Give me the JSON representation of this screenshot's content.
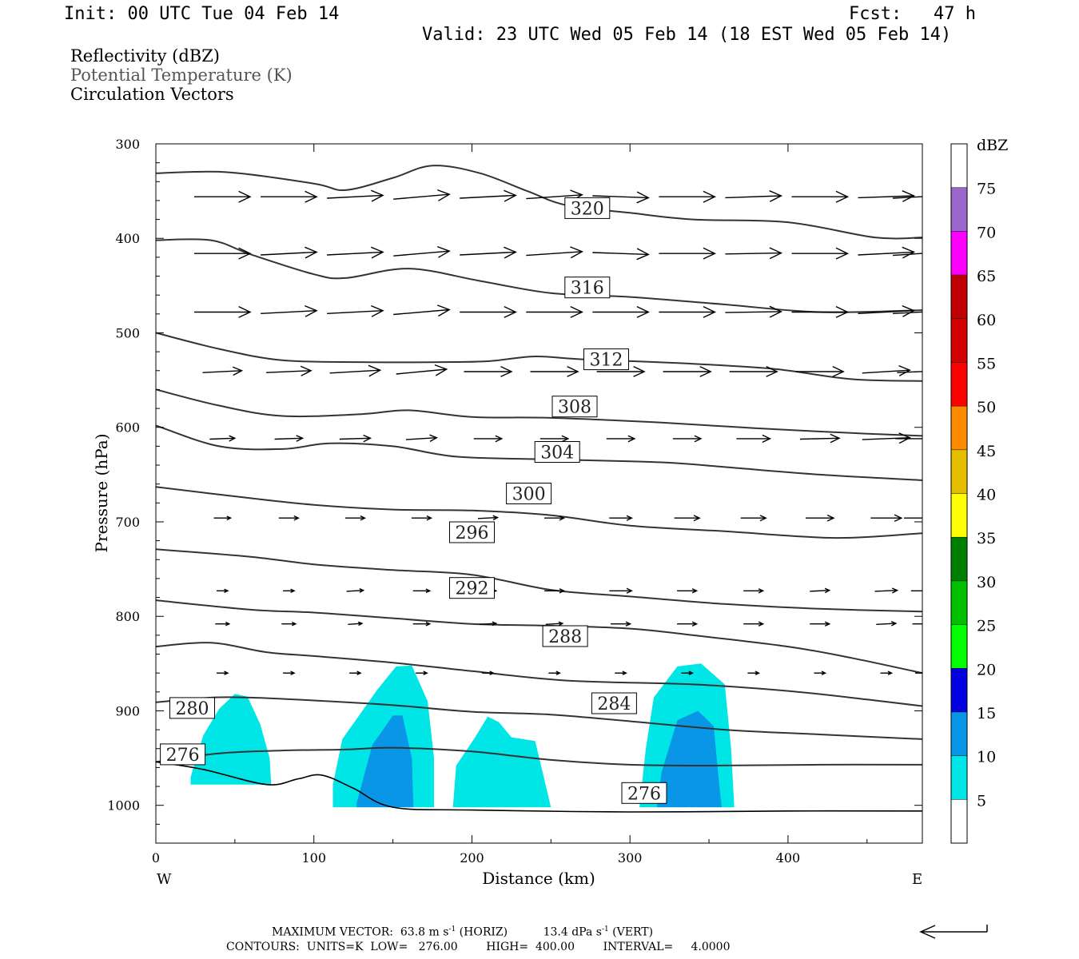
{
  "header": {
    "init": "Init: 00 UTC Tue 04 Feb 14",
    "fcst": "Fcst:   47 h",
    "valid": "Valid: 23 UTC Wed 05 Feb 14 (18 EST Wed 05 Feb 14)"
  },
  "fields": {
    "reflectivity": "Reflectivity (dBZ)",
    "theta": "Potential Temperature (K)",
    "vectors": "Circulation Vectors"
  },
  "chart_data": {
    "type": "cross-section",
    "xlabel": "Distance (km)",
    "ylabel": "Pressure (hPa)",
    "xlim": [
      0,
      485
    ],
    "ylim": [
      300,
      1040
    ],
    "x_ticks": [
      "0",
      "100",
      "200",
      "300",
      "400"
    ],
    "y_ticks": [
      "300",
      "400",
      "500",
      "600",
      "700",
      "800",
      "900",
      "1000"
    ],
    "x_end_labels": {
      "left": "W",
      "right": "E"
    },
    "colorbar": {
      "unit": "dBZ",
      "levels": [
        "5",
        "10",
        "15",
        "20",
        "25",
        "30",
        "35",
        "40",
        "45",
        "50",
        "55",
        "60",
        "65",
        "70",
        "75"
      ],
      "colors": [
        "#ffffff",
        "#00e6e6",
        "#0a96e6",
        "#0000e0",
        "#00ff00",
        "#00c000",
        "#008000",
        "#ffff00",
        "#e6be00",
        "#ff8c00",
        "#ff0000",
        "#d40000",
        "#c00000",
        "#ff00ff",
        "#9966cc",
        "#ffffff"
      ]
    },
    "contour_labels": [
      {
        "label": "320",
        "x": 273,
        "p": 368
      },
      {
        "label": "316",
        "x": 273,
        "p": 452
      },
      {
        "label": "312",
        "x": 285,
        "p": 528
      },
      {
        "label": "308",
        "x": 265,
        "p": 578
      },
      {
        "label": "304",
        "x": 254,
        "p": 626
      },
      {
        "label": "300",
        "x": 236,
        "p": 670
      },
      {
        "label": "296",
        "x": 200,
        "p": 711
      },
      {
        "label": "292",
        "x": 200,
        "p": 770
      },
      {
        "label": "288",
        "x": 259,
        "p": 821
      },
      {
        "label": "284",
        "x": 290,
        "p": 892
      },
      {
        "label": "280",
        "x": 23,
        "p": 897
      },
      {
        "label": "276",
        "x": 17,
        "p": 946
      },
      {
        "label": "276",
        "x": 309,
        "p": 987
      }
    ],
    "theta_contours": [
      {
        "level": 320,
        "points": [
          [
            0,
            331
          ],
          [
            45,
            330
          ],
          [
            100,
            342
          ],
          [
            120,
            349
          ],
          [
            150,
            336
          ],
          [
            175,
            323
          ],
          [
            205,
            331
          ],
          [
            235,
            350
          ],
          [
            260,
            365
          ],
          [
            300,
            373
          ],
          [
            340,
            380
          ],
          [
            400,
            383
          ],
          [
            455,
            399
          ],
          [
            485,
            399
          ]
        ]
      },
      {
        "level": 316,
        "points": [
          [
            0,
            402
          ],
          [
            35,
            402
          ],
          [
            60,
            417
          ],
          [
            100,
            438
          ],
          [
            120,
            442
          ],
          [
            160,
            432
          ],
          [
            205,
            445
          ],
          [
            250,
            458
          ],
          [
            300,
            462
          ],
          [
            360,
            470
          ],
          [
            420,
            478
          ],
          [
            485,
            476
          ]
        ]
      },
      {
        "level": 312,
        "points": [
          [
            0,
            500
          ],
          [
            40,
            517
          ],
          [
            80,
            529
          ],
          [
            130,
            531
          ],
          [
            180,
            531
          ],
          [
            210,
            530
          ],
          [
            240,
            525
          ],
          [
            270,
            528
          ],
          [
            330,
            532
          ],
          [
            390,
            538
          ],
          [
            440,
            549
          ],
          [
            485,
            551
          ]
        ]
      },
      {
        "level": 308,
        "points": [
          [
            0,
            560
          ],
          [
            40,
            577
          ],
          [
            80,
            588
          ],
          [
            130,
            586
          ],
          [
            160,
            582
          ],
          [
            200,
            589
          ],
          [
            250,
            590
          ],
          [
            320,
            595
          ],
          [
            380,
            601
          ],
          [
            440,
            606
          ],
          [
            485,
            609
          ]
        ]
      },
      {
        "level": 304,
        "points": [
          [
            0,
            598
          ],
          [
            40,
            620
          ],
          [
            80,
            623
          ],
          [
            110,
            617
          ],
          [
            150,
            620
          ],
          [
            190,
            631
          ],
          [
            250,
            634
          ],
          [
            320,
            637
          ],
          [
            360,
            642
          ],
          [
            420,
            650
          ],
          [
            485,
            656
          ]
        ]
      },
      {
        "level": 300,
        "points": [
          [
            0,
            663
          ],
          [
            60,
            675
          ],
          [
            100,
            682
          ],
          [
            150,
            687
          ],
          [
            200,
            688
          ],
          [
            250,
            693
          ],
          [
            300,
            704
          ],
          [
            360,
            710
          ],
          [
            430,
            717
          ],
          [
            485,
            712
          ]
        ]
      },
      {
        "level": 296,
        "points": [
          [
            0,
            729
          ],
          [
            60,
            737
          ],
          [
            100,
            745
          ],
          [
            150,
            751
          ],
          [
            200,
            756
          ],
          [
            250,
            772
          ],
          [
            300,
            779
          ],
          [
            360,
            787
          ],
          [
            420,
            792
          ],
          [
            485,
            795
          ]
        ]
      },
      {
        "level": 292,
        "points": [
          [
            0,
            783
          ],
          [
            60,
            793
          ],
          [
            100,
            796
          ],
          [
            150,
            802
          ],
          [
            200,
            808
          ],
          [
            250,
            810
          ],
          [
            300,
            813
          ],
          [
            340,
            820
          ],
          [
            400,
            832
          ],
          [
            440,
            844
          ],
          [
            485,
            860
          ]
        ]
      },
      {
        "level": 288,
        "points": [
          [
            0,
            832
          ],
          [
            35,
            828
          ],
          [
            70,
            838
          ],
          [
            100,
            842
          ],
          [
            150,
            849
          ],
          [
            200,
            858
          ],
          [
            260,
            868
          ],
          [
            340,
            872
          ],
          [
            400,
            879
          ],
          [
            450,
            888
          ],
          [
            485,
            895
          ]
        ]
      },
      {
        "level": 284,
        "points": [
          [
            0,
            891
          ],
          [
            35,
            886
          ],
          [
            60,
            886
          ],
          [
            100,
            889
          ],
          [
            150,
            894
          ],
          [
            200,
            901
          ],
          [
            250,
            904
          ],
          [
            300,
            911
          ],
          [
            360,
            920
          ],
          [
            420,
            925
          ],
          [
            485,
            930
          ]
        ]
      },
      {
        "level": 280,
        "points": [
          [
            0,
            954
          ],
          [
            40,
            945
          ],
          [
            80,
            942
          ],
          [
            120,
            941
          ],
          [
            150,
            939
          ],
          [
            200,
            943
          ],
          [
            250,
            952
          ],
          [
            300,
            957
          ],
          [
            350,
            958
          ],
          [
            420,
            957
          ],
          [
            485,
            957
          ]
        ]
      }
    ],
    "reflectivity_cells": [
      {
        "dbz": 5,
        "points": [
          [
            22,
            970
          ],
          [
            30,
            926
          ],
          [
            40,
            898
          ],
          [
            50,
            882
          ],
          [
            58,
            885
          ],
          [
            66,
            914
          ],
          [
            72,
            950
          ],
          [
            73,
            978
          ],
          [
            22,
            978
          ]
        ]
      },
      {
        "dbz": 5,
        "points": [
          [
            112,
            978
          ],
          [
            118,
            930
          ],
          [
            140,
            878
          ],
          [
            152,
            853
          ],
          [
            162,
            852
          ],
          [
            172,
            890
          ],
          [
            176,
            950
          ],
          [
            176,
            1002
          ],
          [
            112,
            1002
          ]
        ]
      },
      {
        "dbz": 10,
        "points": [
          [
            127,
            998
          ],
          [
            137,
            936
          ],
          [
            150,
            905
          ],
          [
            156,
            905
          ],
          [
            162,
            950
          ],
          [
            163,
            1002
          ],
          [
            127,
            1002
          ]
        ]
      },
      {
        "dbz": 5,
        "points": [
          [
            188,
            1002
          ],
          [
            190,
            958
          ],
          [
            202,
            928
          ],
          [
            210,
            906
          ],
          [
            217,
            912
          ],
          [
            225,
            928
          ],
          [
            240,
            932
          ],
          [
            250,
            1002
          ]
        ]
      },
      {
        "dbz": 5,
        "points": [
          [
            306,
            1002
          ],
          [
            310,
            940
          ],
          [
            315,
            886
          ],
          [
            330,
            853
          ],
          [
            345,
            850
          ],
          [
            360,
            872
          ],
          [
            364,
            940
          ],
          [
            366,
            1002
          ]
        ]
      },
      {
        "dbz": 10,
        "points": [
          [
            317,
            1002
          ],
          [
            320,
            965
          ],
          [
            330,
            910
          ],
          [
            343,
            900
          ],
          [
            353,
            916
          ],
          [
            356,
            970
          ],
          [
            358,
            1002
          ]
        ]
      }
    ],
    "surface": {
      "points": [
        [
          0,
          954
        ],
        [
          30,
          962
        ],
        [
          70,
          978
        ],
        [
          90,
          972
        ],
        [
          105,
          968
        ],
        [
          125,
          982
        ],
        [
          150,
          1002
        ],
        [
          200,
          1005
        ],
        [
          300,
          1007
        ],
        [
          400,
          1006
        ],
        [
          485,
          1006
        ]
      ]
    },
    "vector_rows": [
      {
        "p": 356,
        "u": [
          1.0,
          1.0,
          1.0,
          1.0,
          1.0,
          1.0,
          1.0,
          1.0,
          1.0,
          1.0,
          1.0,
          1.0
        ],
        "w": [
          0,
          0,
          -3,
          -5,
          -3,
          -4,
          2,
          0,
          -2,
          0,
          -2,
          -3
        ]
      },
      {
        "p": 416,
        "u": [
          1.0,
          1.0,
          1.0,
          1.0,
          1.0,
          1.0,
          1.0,
          1.0,
          1.0,
          1.0,
          1.0,
          1.0
        ],
        "w": [
          0,
          -3,
          -3,
          -5,
          -3,
          -4,
          2,
          0,
          -1,
          0,
          -3,
          -4
        ]
      },
      {
        "p": 478,
        "u": [
          1.0,
          1.0,
          1.0,
          1.0,
          1.0,
          1.0,
          1.0,
          1.0,
          1.0,
          1.0,
          1.0,
          1.0
        ],
        "w": [
          0,
          -3,
          -3,
          -5,
          0,
          0,
          0,
          0,
          -1,
          0,
          -3,
          -3
        ]
      },
      {
        "p": 541,
        "u": [
          0.7,
          0.8,
          0.9,
          0.9,
          0.85,
          0.85,
          0.85,
          0.85,
          0.85,
          0.85,
          0.85,
          0.85
        ],
        "w": [
          -2,
          -2,
          -3,
          -5,
          0,
          0,
          0,
          0,
          0,
          0,
          -3,
          -2
        ]
      },
      {
        "p": 612,
        "u": [
          0.45,
          0.5,
          0.55,
          0.55,
          0.5,
          0.5,
          0.5,
          0.5,
          0.6,
          0.7,
          0.85,
          0.9
        ],
        "w": [
          -1,
          -1,
          -1,
          -2,
          0,
          0,
          0,
          0,
          0,
          -1,
          -2,
          0
        ]
      },
      {
        "p": 696,
        "u": [
          0.3,
          0.35,
          0.35,
          0.35,
          0.35,
          0.35,
          0.4,
          0.45,
          0.45,
          0.5,
          0.55,
          0.6
        ],
        "w": [
          0,
          0,
          0,
          0,
          -1,
          0,
          0,
          0,
          0,
          0,
          0,
          0
        ]
      },
      {
        "p": 773,
        "u": [
          0.2,
          0.2,
          0.3,
          0.3,
          0.3,
          0.35,
          0.4,
          0.35,
          0.35,
          0.35,
          0.4,
          0.35
        ],
        "w": [
          0,
          0,
          -1,
          0,
          0,
          0,
          0,
          0,
          0,
          -1,
          -1,
          0
        ]
      },
      {
        "p": 808,
        "u": [
          0.25,
          0.25,
          0.25,
          0.3,
          0.3,
          0.3,
          0.35,
          0.35,
          0.35,
          0.35,
          0.35,
          0.3
        ],
        "w": [
          0,
          0,
          -1,
          0,
          -1,
          -1,
          0,
          0,
          0,
          0,
          -1,
          0
        ]
      },
      {
        "p": 860,
        "u": [
          0.2,
          0.2,
          0.2,
          0.2,
          0.2,
          0.2,
          0.2,
          0.2,
          0.2,
          0.2,
          0.2,
          0.2
        ],
        "w": [
          0,
          0,
          0,
          0,
          0,
          0,
          0,
          0,
          0,
          0,
          0,
          0
        ]
      }
    ],
    "vector_x": [
      42,
      84,
      126,
      168,
      210,
      252,
      294,
      336,
      378,
      420,
      462,
      484
    ]
  },
  "footer": {
    "max_vector_label": "MAXIMUM VECTOR:",
    "max_vector_horiz": "63.8 m s",
    "horiz_unit_suffix": " (HORIZ)",
    "max_vector_vert": "13.4 dPa s",
    "vert_unit_suffix": " (VERT)",
    "exponent": "-1",
    "contours_line": "CONTOURS:  UNITS=K  LOW=   276.00        HIGH=  400.00        INTERVAL=     4.0000"
  }
}
